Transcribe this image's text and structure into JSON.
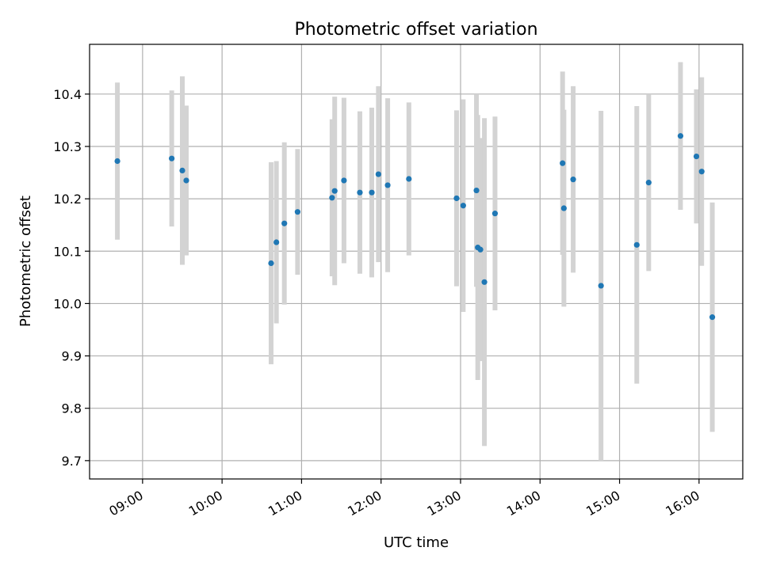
{
  "chart_data": {
    "type": "scatter",
    "title": "Photometric offset variation",
    "xlabel": "UTC time",
    "ylabel": "Photometric offset",
    "x_tick_labels": [
      "09:00",
      "10:00",
      "11:00",
      "12:00",
      "13:00",
      "14:00",
      "15:00",
      "16:00"
    ],
    "y_ticks": [
      9.7,
      9.8,
      9.9,
      10.0,
      10.1,
      10.2,
      10.3,
      10.4
    ],
    "y_tick_labels": [
      "9.7",
      "9.8",
      "9.9",
      "10.0",
      "10.1",
      "10.2",
      "10.3",
      "10.4"
    ],
    "xlim": [
      "08:20",
      "16:33"
    ],
    "ylim": [
      9.665,
      10.495
    ],
    "grid": true,
    "marker_color": "#1f77b4",
    "errorbar_color": "#d3d3d3",
    "points": [
      {
        "x": "08:41",
        "y": 10.272,
        "yerr": 0.15
      },
      {
        "x": "09:22",
        "y": 10.277,
        "yerr": 0.13
      },
      {
        "x": "09:30",
        "y": 10.254,
        "yerr": 0.18
      },
      {
        "x": "09:33",
        "y": 10.235,
        "yerr": 0.143
      },
      {
        "x": "10:37",
        "y": 10.077,
        "yerr": 0.193
      },
      {
        "x": "10:41",
        "y": 10.117,
        "yerr": 0.155
      },
      {
        "x": "10:47",
        "y": 10.153,
        "yerr": 0.155
      },
      {
        "x": "10:57",
        "y": 10.175,
        "yerr": 0.12
      },
      {
        "x": "11:23",
        "y": 10.202,
        "yerr": 0.15
      },
      {
        "x": "11:25",
        "y": 10.215,
        "yerr": 0.18
      },
      {
        "x": "11:32",
        "y": 10.235,
        "yerr": 0.158
      },
      {
        "x": "11:44",
        "y": 10.212,
        "yerr": 0.155
      },
      {
        "x": "11:53",
        "y": 10.212,
        "yerr": 0.162
      },
      {
        "x": "11:58",
        "y": 10.247,
        "yerr": 0.168
      },
      {
        "x": "12:05",
        "y": 10.226,
        "yerr": 0.166
      },
      {
        "x": "12:21",
        "y": 10.238,
        "yerr": 0.146
      },
      {
        "x": "12:57",
        "y": 10.201,
        "yerr": 0.168
      },
      {
        "x": "13:02",
        "y": 10.187,
        "yerr": 0.203
      },
      {
        "x": "13:12",
        "y": 10.216,
        "yerr": 0.184
      },
      {
        "x": "13:13",
        "y": 10.107,
        "yerr": 0.253
      },
      {
        "x": "13:15",
        "y": 10.103,
        "yerr": 0.213
      },
      {
        "x": "13:18",
        "y": 10.041,
        "yerr": 0.313
      },
      {
        "x": "13:26",
        "y": 10.172,
        "yerr": 0.185
      },
      {
        "x": "14:17",
        "y": 10.268,
        "yerr": 0.175
      },
      {
        "x": "14:18",
        "y": 10.182,
        "yerr": 0.188
      },
      {
        "x": "14:25",
        "y": 10.237,
        "yerr": 0.178
      },
      {
        "x": "14:46",
        "y": 10.034,
        "yerr": 0.334
      },
      {
        "x": "15:13",
        "y": 10.112,
        "yerr": 0.265
      },
      {
        "x": "15:22",
        "y": 10.231,
        "yerr": 0.169
      },
      {
        "x": "15:46",
        "y": 10.32,
        "yerr": 0.141
      },
      {
        "x": "15:58",
        "y": 10.281,
        "yerr": 0.128
      },
      {
        "x": "16:02",
        "y": 10.252,
        "yerr": 0.18
      },
      {
        "x": "16:10",
        "y": 9.974,
        "yerr": 0.219
      }
    ]
  }
}
